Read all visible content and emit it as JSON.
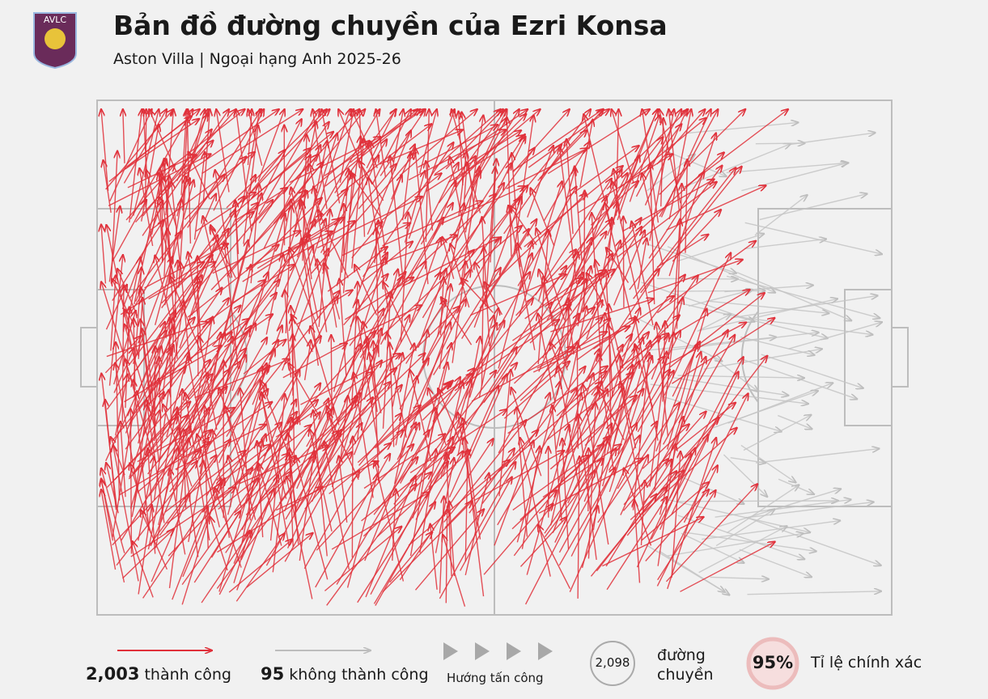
{
  "chart_data": {
    "type": "passmap",
    "crest": "AVLC",
    "title": "Bản đồ đường chuyền của Ezri Konsa",
    "subtitle": "Aston Villa | Ngoại hạng Anh 2025-26",
    "series": [
      {
        "name": "thành công",
        "color": "#e0303a",
        "value": 2003,
        "value_label": "2,003"
      },
      {
        "name": "không thành công",
        "color": "#c4c4c4",
        "value": 95
      }
    ],
    "direction_label": "Hướng tấn công",
    "total": {
      "value": 2098,
      "label": "2,098",
      "text": "đường chuyền"
    },
    "accuracy": {
      "value": 95,
      "label": "95%",
      "text": "Tỉ lệ chính xác"
    }
  }
}
